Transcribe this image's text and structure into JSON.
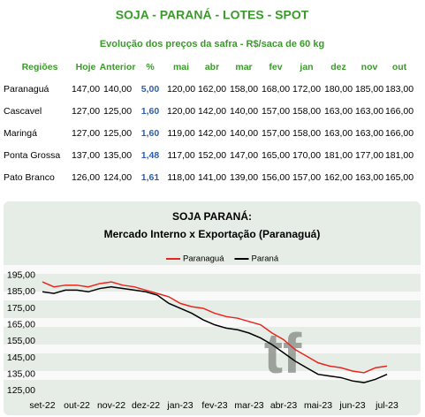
{
  "table": {
    "title": "SOJA - PARANÁ - LOTES - SPOT",
    "subtitle": "Evolução dos preços da safra - R$/saca de 60 kg",
    "headers": [
      "Regiões",
      "Hoje",
      "Anterior",
      "%",
      "mai",
      "abr",
      "mar",
      "fev",
      "jan",
      "dez",
      "nov",
      "out"
    ],
    "rows": [
      [
        "Paranaguá",
        "147,00",
        "140,00",
        "5,00",
        "120,00",
        "162,00",
        "158,00",
        "168,00",
        "172,00",
        "180,00",
        "185,00",
        "183,00"
      ],
      [
        "Cascavel",
        "127,00",
        "125,00",
        "1,60",
        "120,00",
        "142,00",
        "140,00",
        "157,00",
        "158,00",
        "163,00",
        "163,00",
        "166,00"
      ],
      [
        "Maringá",
        "127,00",
        "125,00",
        "1,60",
        "119,00",
        "142,00",
        "140,00",
        "157,00",
        "158,00",
        "163,00",
        "163,00",
        "166,00"
      ],
      [
        "Ponta Grossa",
        "137,00",
        "135,00",
        "1,48",
        "117,00",
        "152,00",
        "147,00",
        "165,00",
        "170,00",
        "181,00",
        "177,00",
        "181,00"
      ],
      [
        "Pato Branco",
        "126,00",
        "124,00",
        "1,61",
        "118,00",
        "141,00",
        "139,00",
        "156,00",
        "157,00",
        "162,00",
        "163,00",
        "165,00"
      ]
    ]
  },
  "chart_data": {
    "type": "line",
    "title": "SOJA PARANÁ:",
    "subtitle": "Mercado Interno x Exportação (Paranaguá)",
    "watermark": "tf",
    "categories": [
      "set-22",
      null,
      null,
      "out-22",
      null,
      null,
      "nov-22",
      null,
      null,
      "dez-22",
      null,
      null,
      "jan-23",
      null,
      null,
      "fev-23",
      null,
      null,
      "mar-23",
      null,
      null,
      "abr-23",
      null,
      null,
      "mai-23",
      null,
      null,
      "jun-23",
      null,
      null,
      "jul-23"
    ],
    "series": [
      {
        "name": "Paranaguá",
        "color": "#e8261e",
        "values": [
          191,
          188,
          189,
          189,
          188,
          190,
          191,
          189,
          188,
          186,
          184,
          182,
          178,
          176,
          175,
          172,
          170,
          169,
          167,
          165,
          160,
          156,
          150,
          146,
          142,
          140,
          139,
          137,
          136,
          139,
          140
        ]
      },
      {
        "name": "Paraná",
        "color": "#000000",
        "values": [
          185,
          184,
          186,
          186,
          185,
          187,
          188,
          187,
          186,
          185,
          183,
          178,
          175,
          172,
          168,
          165,
          163,
          162,
          160,
          157,
          153,
          148,
          143,
          139,
          135,
          134,
          133,
          131,
          130,
          132,
          135
        ]
      }
    ],
    "ylim": [
      122,
      198
    ],
    "yticks": [
      {
        "value": 125,
        "label": "125,00"
      },
      {
        "value": 135,
        "label": "135,00"
      },
      {
        "value": 145,
        "label": "145,00"
      },
      {
        "value": 155,
        "label": "155,00"
      },
      {
        "value": 165,
        "label": "165,00"
      },
      {
        "value": 175,
        "label": "175,00"
      },
      {
        "value": 185,
        "label": "185,00"
      },
      {
        "value": 195,
        "label": "195,00"
      }
    ],
    "grid": false,
    "legend": "top"
  }
}
